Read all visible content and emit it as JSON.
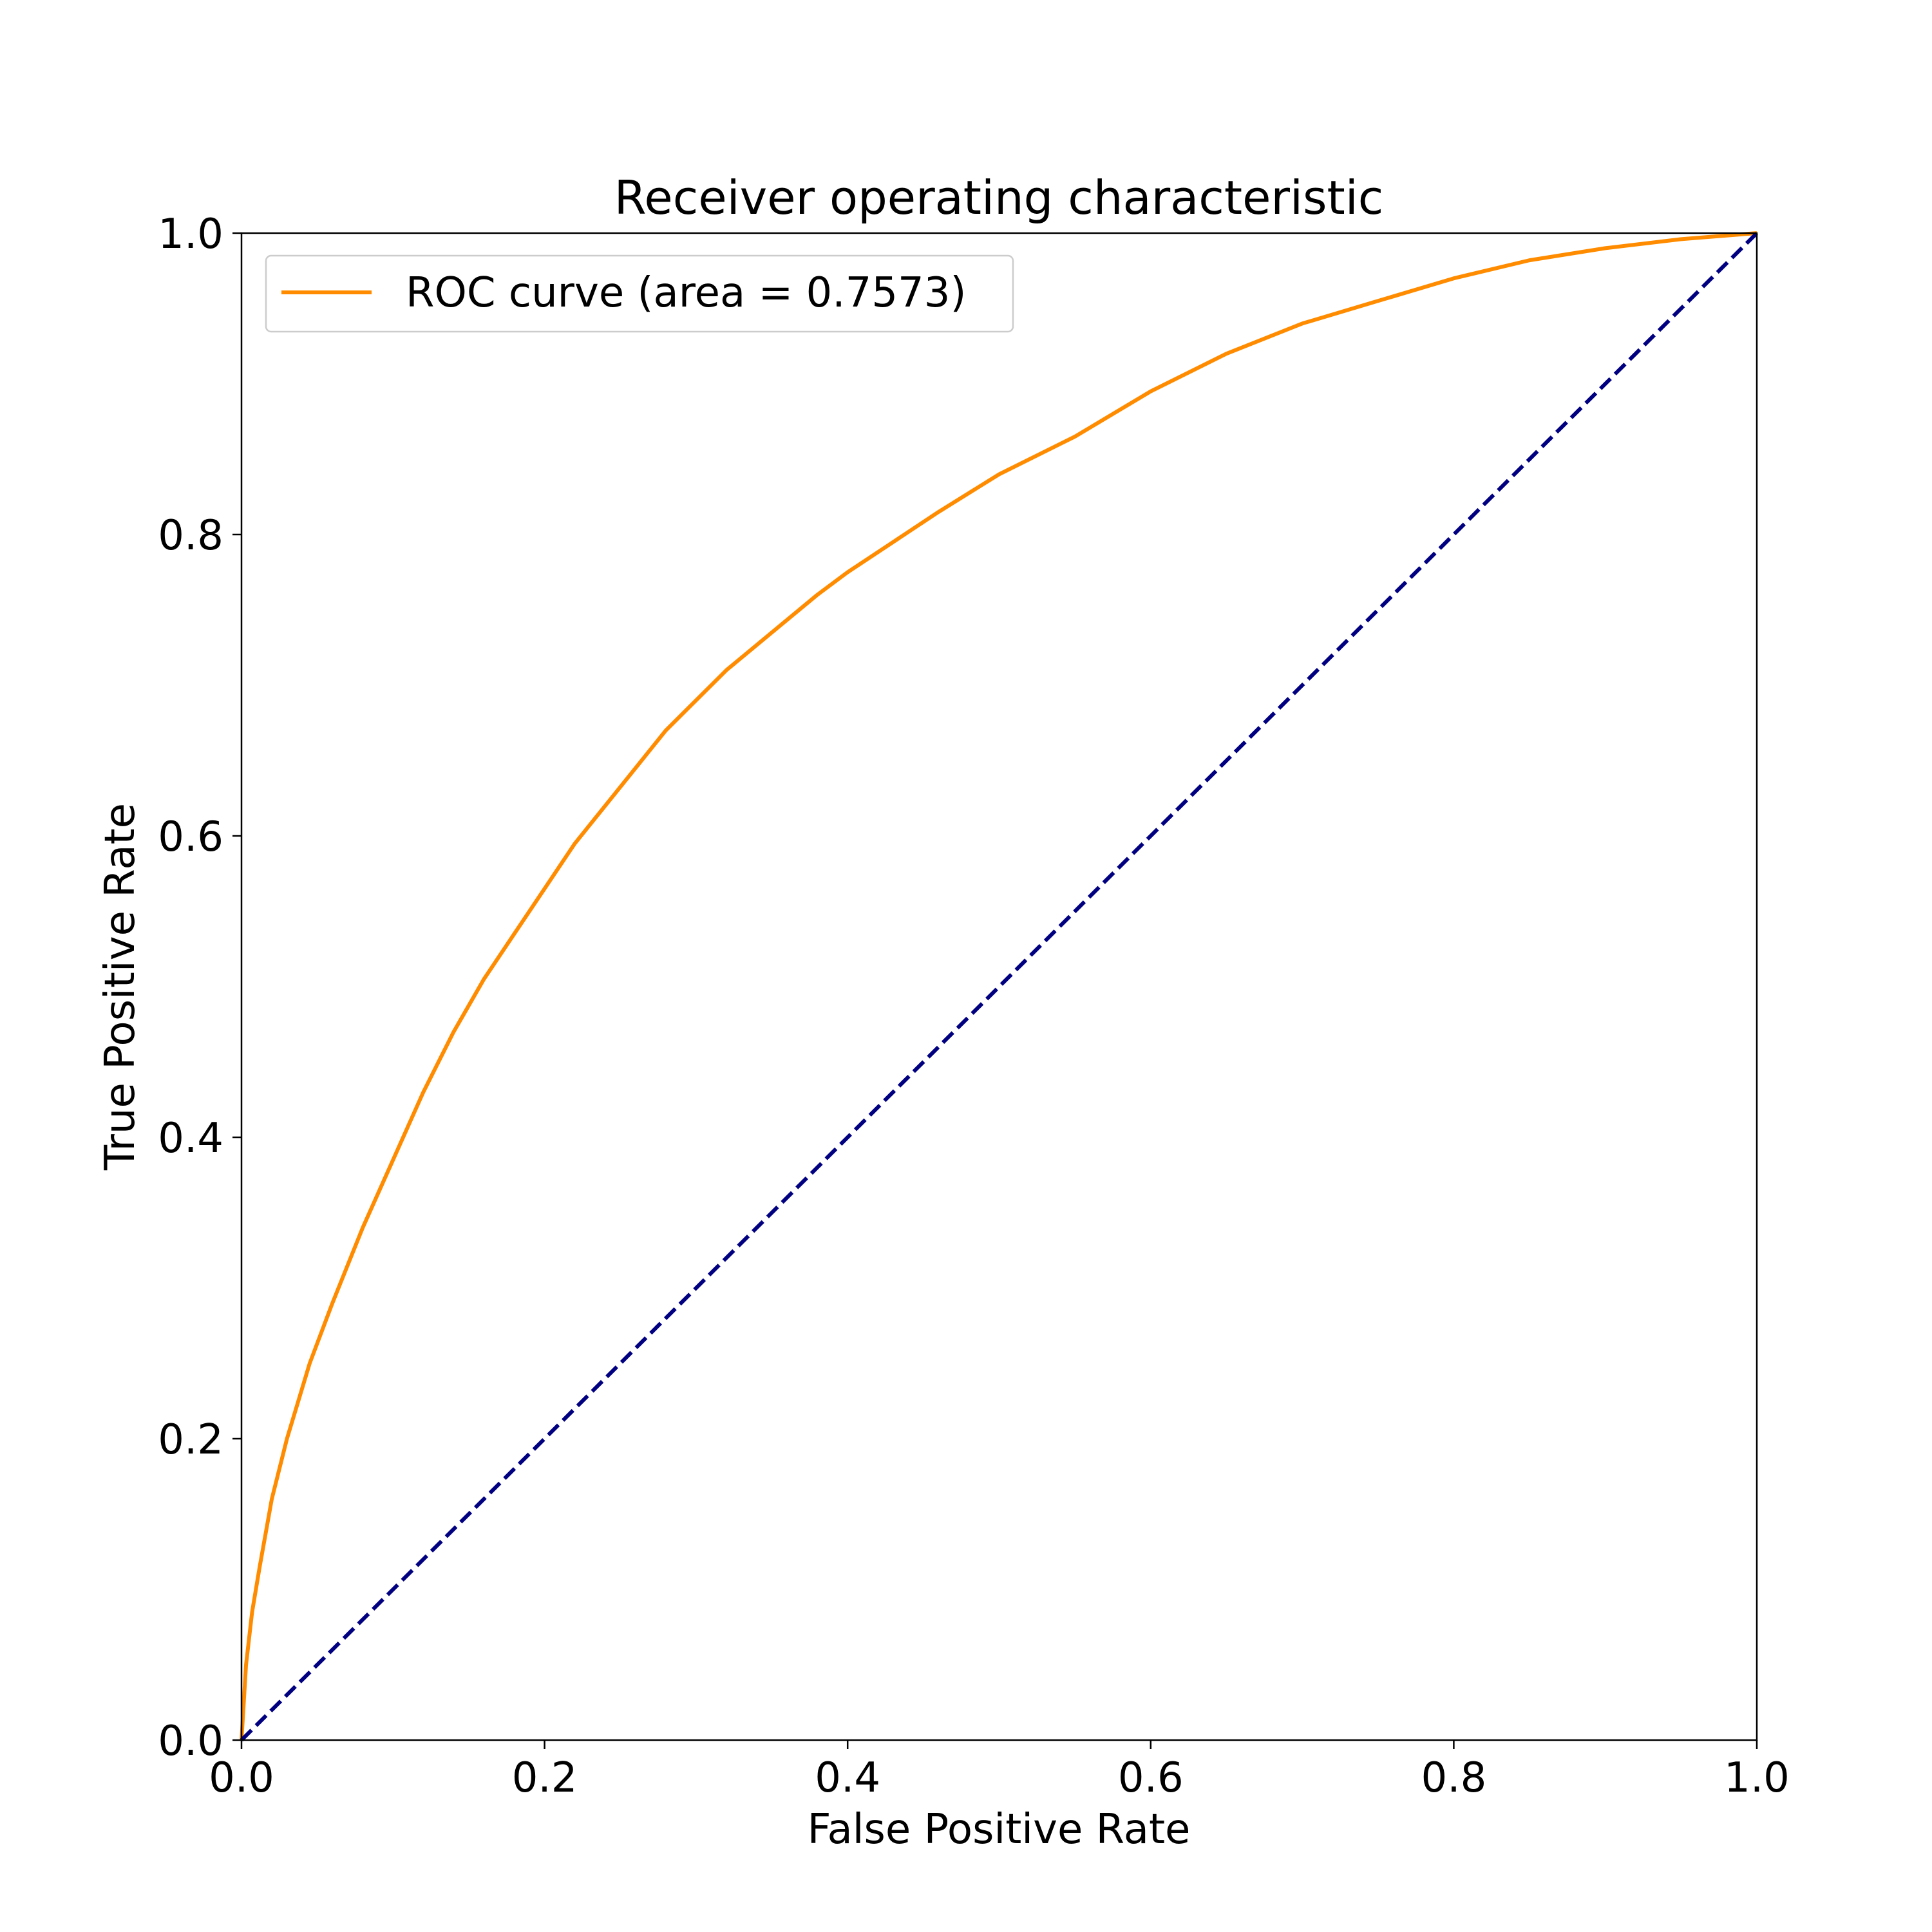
{
  "chart_data": {
    "type": "line",
    "title": "Receiver operating characteristic",
    "xlabel": "False Positive Rate",
    "ylabel": "True Positive Rate",
    "xlim": [
      0.0,
      1.0
    ],
    "ylim": [
      0.0,
      1.0
    ],
    "x_ticks": [
      0.0,
      0.2,
      0.4,
      0.6,
      0.8,
      1.0
    ],
    "y_ticks": [
      0.0,
      0.2,
      0.4,
      0.6,
      0.8,
      1.0
    ],
    "x_tick_labels": [
      "0.0",
      "0.2",
      "0.4",
      "0.6",
      "0.8",
      "1.0"
    ],
    "y_tick_labels": [
      "0.0",
      "0.2",
      "0.4",
      "0.6",
      "0.8",
      "1.0"
    ],
    "grid": false,
    "legend": {
      "position": "upper left",
      "entries": [
        "ROC curve (area = 0.7573)"
      ]
    },
    "series": [
      {
        "name": "ROC curve (area = 0.7573)",
        "color": "#ff8c00",
        "style": "solid",
        "x": [
          0.0,
          0.003,
          0.007,
          0.012,
          0.02,
          0.03,
          0.045,
          0.06,
          0.08,
          0.1,
          0.12,
          0.14,
          0.16,
          0.18,
          0.2,
          0.22,
          0.24,
          0.26,
          0.28,
          0.3,
          0.32,
          0.35,
          0.38,
          0.4,
          0.43,
          0.46,
          0.5,
          0.55,
          0.6,
          0.65,
          0.7,
          0.75,
          0.8,
          0.85,
          0.9,
          0.95,
          1.0
        ],
        "y": [
          0.0,
          0.05,
          0.085,
          0.115,
          0.16,
          0.2,
          0.25,
          0.29,
          0.34,
          0.385,
          0.43,
          0.47,
          0.505,
          0.535,
          0.565,
          0.595,
          0.62,
          0.645,
          0.67,
          0.69,
          0.71,
          0.735,
          0.76,
          0.775,
          0.795,
          0.815,
          0.84,
          0.865,
          0.895,
          0.92,
          0.94,
          0.955,
          0.97,
          0.982,
          0.99,
          0.996,
          1.0
        ]
      },
      {
        "color": "#000080",
        "style": "dashed",
        "x": [
          0.0,
          1.0
        ],
        "y": [
          0.0,
          1.0
        ]
      }
    ]
  }
}
